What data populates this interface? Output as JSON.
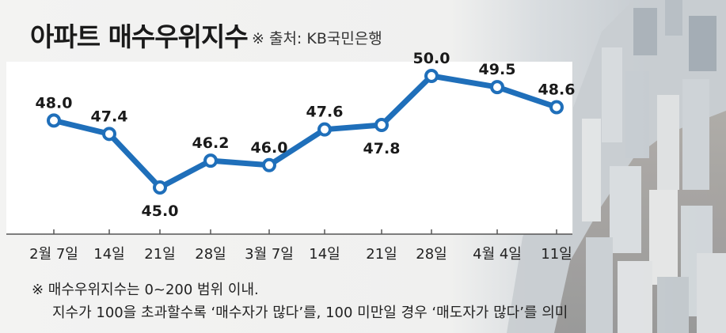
{
  "title": "아파트 매수우위지수",
  "source": "※ 출처: KB국민은행",
  "colors": {
    "line": "#1f6fba",
    "marker_fill": "#ffffff",
    "text": "#1a1a1a"
  },
  "chart_data": {
    "type": "line",
    "title": "아파트 매수우위지수",
    "categories": [
      "2월 7일",
      "14일",
      "21일",
      "28일",
      "3월 7일",
      "14일",
      "21일",
      "28일",
      "4월 4일",
      "11일"
    ],
    "series": [
      {
        "values": [
          48.0,
          47.4,
          45.0,
          46.2,
          46.0,
          47.6,
          47.8,
          50.0,
          49.5,
          48.6
        ]
      }
    ],
    "data_labels": [
      "48.0",
      "47.4",
      "45.0",
      "46.2",
      "46.0",
      "47.6",
      "47.8",
      "50.0",
      "49.5",
      "48.6"
    ],
    "label_position": [
      "above",
      "above",
      "below",
      "above",
      "above",
      "above",
      "below",
      "above",
      "above",
      "above"
    ],
    "ylim": [
      45.0,
      50.0
    ],
    "grid": false,
    "legend": false
  },
  "footnotes": [
    "※ 매수우위지수는 0~200 범위 이내.",
    "지수가 100을 초과할수록 ‘매수자가 많다’를, 100 미만일 경우 ‘매도자가 많다’를 의미"
  ]
}
